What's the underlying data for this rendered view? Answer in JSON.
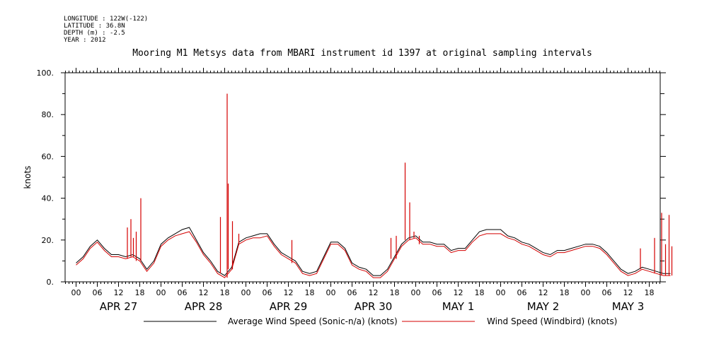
{
  "meta": {
    "longitude": "LONGITUDE : 122W(-122)",
    "latitude": "LATITUDE : 36.8N",
    "depth": "DEPTH (m) : -2.5",
    "year": "YEAR : 2012"
  },
  "chart_data": {
    "type": "line",
    "title": "Mooring M1 Metsys data from MBARI instrument id 1397 at original sampling intervals",
    "ylabel": "knots",
    "xlabel": "",
    "ylim": [
      0,
      100
    ],
    "xlim_hours": [
      0,
      169
    ],
    "y_ticks": [
      "0.",
      "20.",
      "40.",
      "60.",
      "80.",
      "100."
    ],
    "hour_ticks": [
      "00",
      "06",
      "12",
      "18",
      "00",
      "06",
      "12",
      "18",
      "00",
      "06",
      "12",
      "18",
      "00",
      "06",
      "12",
      "18",
      "00",
      "06",
      "12",
      "18",
      "00",
      "06",
      "12",
      "18",
      "00",
      "06",
      "12",
      "18"
    ],
    "day_labels": [
      "APR 27",
      "APR 28",
      "APR 29",
      "APR 30",
      "MAY  1",
      "MAY  2",
      "MAY  3"
    ],
    "grid": false,
    "legend_position": "bottom",
    "colors": {
      "sonic": "#000000",
      "windbird": "#d40000"
    },
    "series": [
      {
        "name": "Average Wind Speed (Sonic-n/a) (knots)",
        "x": [
          0,
          2,
          4,
          6,
          8,
          10,
          12,
          14,
          16,
          18,
          20,
          22,
          24,
          26,
          28,
          30,
          32,
          34,
          36,
          38,
          40,
          42,
          44,
          46,
          48,
          50,
          52,
          54,
          56,
          58,
          60,
          62,
          64,
          66,
          68,
          70,
          72,
          74,
          76,
          78,
          80,
          82,
          84,
          86,
          88,
          90,
          92,
          94,
          96,
          98,
          100,
          102,
          104,
          106,
          108,
          110,
          112,
          114,
          116,
          118,
          120,
          122,
          124,
          126,
          128,
          130,
          132,
          134,
          136,
          138,
          140,
          142,
          144,
          146,
          148,
          150,
          152,
          154,
          156,
          158,
          160,
          162,
          164,
          166,
          168
        ],
        "values": [
          9,
          12,
          17,
          20,
          16,
          13,
          13,
          12,
          13,
          11,
          6,
          10,
          18,
          21,
          23,
          25,
          26,
          20,
          14,
          10,
          5,
          3,
          7,
          19,
          21,
          22,
          23,
          23,
          18,
          14,
          12,
          10,
          5,
          4,
          5,
          12,
          19,
          19,
          16,
          9,
          7,
          6,
          3,
          3,
          6,
          12,
          18,
          21,
          22,
          19,
          19,
          18,
          18,
          15,
          16,
          16,
          20,
          24,
          25,
          25,
          25,
          22,
          21,
          19,
          18,
          16,
          14,
          13,
          15,
          15,
          16,
          17,
          18,
          18,
          17,
          14,
          10,
          6,
          4,
          5,
          7,
          6,
          5,
          4,
          4
        ]
      },
      {
        "name": "Wind Speed (Windbird) (knots)",
        "x": [
          0,
          2,
          4,
          6,
          8,
          10,
          12,
          14,
          16,
          18,
          20,
          22,
          24,
          26,
          28,
          30,
          32,
          34,
          36,
          38,
          40,
          42,
          44,
          46,
          48,
          50,
          52,
          54,
          56,
          58,
          60,
          62,
          64,
          66,
          68,
          70,
          72,
          74,
          76,
          78,
          80,
          82,
          84,
          86,
          88,
          90,
          92,
          94,
          96,
          98,
          100,
          102,
          104,
          106,
          108,
          110,
          112,
          114,
          116,
          118,
          120,
          122,
          124,
          126,
          128,
          130,
          132,
          134,
          136,
          138,
          140,
          142,
          144,
          146,
          148,
          150,
          152,
          154,
          156,
          158,
          160,
          162,
          164,
          166,
          168
        ],
        "values": [
          8,
          11,
          16,
          19,
          15,
          12,
          12,
          11,
          12,
          10,
          5,
          9,
          17,
          20,
          22,
          23,
          24,
          19,
          13,
          9,
          4,
          2,
          6,
          18,
          20,
          21,
          21,
          22,
          17,
          13,
          11,
          9,
          4,
          3,
          4,
          11,
          18,
          18,
          15,
          8,
          6,
          5,
          2,
          2,
          5,
          11,
          17,
          20,
          21,
          18,
          18,
          17,
          17,
          14,
          15,
          15,
          19,
          22,
          23,
          23,
          23,
          21,
          20,
          18,
          17,
          15,
          13,
          12,
          14,
          14,
          15,
          16,
          17,
          17,
          16,
          13,
          9,
          5,
          3,
          4,
          6,
          5,
          4,
          3,
          3
        ],
        "spikes": [
          {
            "x": 14.5,
            "y": 26
          },
          {
            "x": 15.5,
            "y": 30
          },
          {
            "x": 17,
            "y": 24
          },
          {
            "x": 18.3,
            "y": 40
          },
          {
            "x": 16.2,
            "y": 21
          },
          {
            "x": 40.8,
            "y": 31
          },
          {
            "x": 42.7,
            "y": 90
          },
          {
            "x": 43,
            "y": 47
          },
          {
            "x": 44.2,
            "y": 29
          },
          {
            "x": 46,
            "y": 23
          },
          {
            "x": 61,
            "y": 20
          },
          {
            "x": 89,
            "y": 21
          },
          {
            "x": 90.5,
            "y": 22
          },
          {
            "x": 93,
            "y": 57
          },
          {
            "x": 94.3,
            "y": 38
          },
          {
            "x": 95.5,
            "y": 24
          },
          {
            "x": 97,
            "y": 22
          },
          {
            "x": 159.5,
            "y": 16
          },
          {
            "x": 163.5,
            "y": 21
          },
          {
            "x": 165.5,
            "y": 33
          },
          {
            "x": 166.6,
            "y": 18
          },
          {
            "x": 167.6,
            "y": 32
          },
          {
            "x": 168.4,
            "y": 17
          }
        ]
      }
    ]
  }
}
